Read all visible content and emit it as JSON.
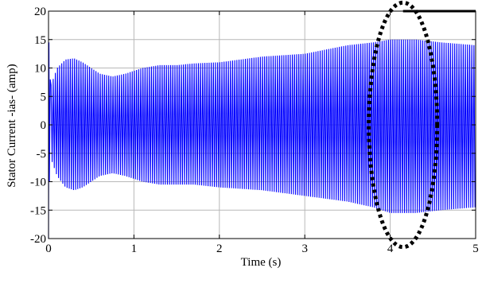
{
  "chart_data": {
    "type": "line",
    "title": "",
    "xlabel": "Time (s)",
    "ylabel": "Stator Current -ias- (amp)",
    "xlim": [
      0,
      5
    ],
    "ylim": [
      -20,
      20
    ],
    "xticks": [
      0,
      1,
      2,
      3,
      4,
      5
    ],
    "yticks": [
      -20,
      -15,
      -10,
      -5,
      0,
      5,
      10,
      15,
      20
    ],
    "grid": true,
    "series": [
      {
        "color": "#0000ff",
        "oscillation_frequency_hz": 40,
        "initial_transient": {
          "x": [
            0,
            0.005,
            0.01,
            0.02
          ],
          "y": [
            -20,
            14.5,
            -10,
            8
          ]
        },
        "envelope": {
          "x": [
            0.03,
            0.1,
            0.2,
            0.3,
            0.4,
            0.5,
            0.6,
            0.75,
            0.9,
            1.1,
            1.3,
            1.5,
            1.7,
            2.0,
            2.5,
            3.0,
            3.5,
            3.8,
            4.0,
            4.3,
            4.6,
            5.0
          ],
          "upper": [
            7.0,
            10.0,
            11.5,
            11.7,
            11.0,
            10.0,
            9.0,
            8.5,
            9.0,
            10.0,
            10.5,
            10.5,
            10.8,
            11.0,
            12.0,
            12.5,
            14.0,
            14.5,
            15.0,
            15.0,
            14.5,
            14.0
          ],
          "lower": [
            -6.0,
            -9.0,
            -11.0,
            -11.5,
            -11.0,
            -10.0,
            -9.0,
            -8.5,
            -9.0,
            -10.0,
            -10.5,
            -10.5,
            -10.5,
            -11.0,
            -11.5,
            -12.5,
            -13.5,
            -14.5,
            -15.5,
            -15.5,
            -15.0,
            -14.5
          ]
        }
      }
    ],
    "annotations": [
      {
        "type": "dotted-ellipse",
        "center": [
          4.15,
          0
        ],
        "rx": 0.4,
        "ry": 21.5,
        "color": "#000000"
      },
      {
        "type": "horizontal-segment",
        "x": [
          4.15,
          5.0
        ],
        "y": 20,
        "color": "#000000"
      }
    ]
  }
}
